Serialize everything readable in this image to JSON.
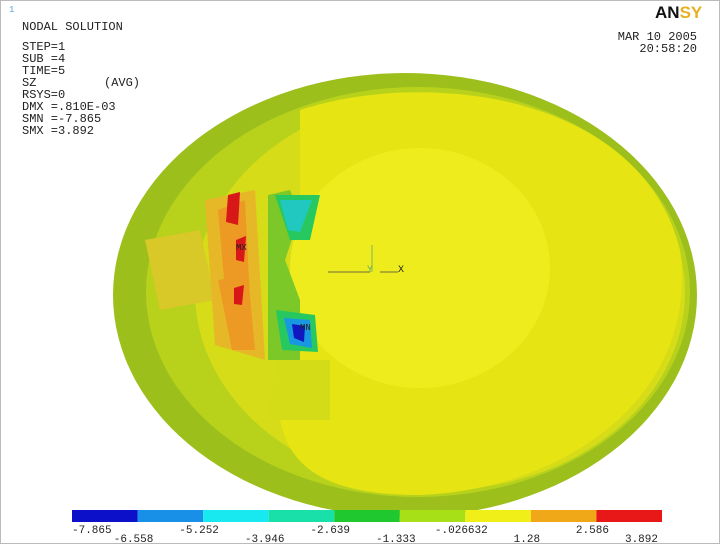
{
  "window_number": "1",
  "info": {
    "title": "NODAL SOLUTION",
    "lines": [
      "STEP=1",
      "SUB =4",
      "TIME=5"
    ],
    "item": "SZ",
    "avg": "(AVG)",
    "lines2": [
      "RSYS=0",
      "DMX =.810E-03",
      "SMN =-7.865",
      "SMX =3.892"
    ]
  },
  "date": "MAR 10 2005",
  "time": "20:58:20",
  "logo": {
    "dark": "AN",
    "gold": "SY"
  },
  "markers": {
    "max": "MX",
    "min": "MN",
    "triad_x": "X",
    "triad_y": "Y"
  },
  "legend": {
    "colors": [
      "#0c10c8",
      "#1890e8",
      "#18e8f0",
      "#18e0a8",
      "#20c830",
      "#a8e018",
      "#f0f018",
      "#f0a818",
      "#e81818"
    ],
    "labels": [
      "-7.865",
      "-6.558",
      "-5.252",
      "-3.946",
      "-2.639",
      "-1.333",
      "-.026632",
      "1.28",
      "2.586",
      "3.892"
    ]
  }
}
